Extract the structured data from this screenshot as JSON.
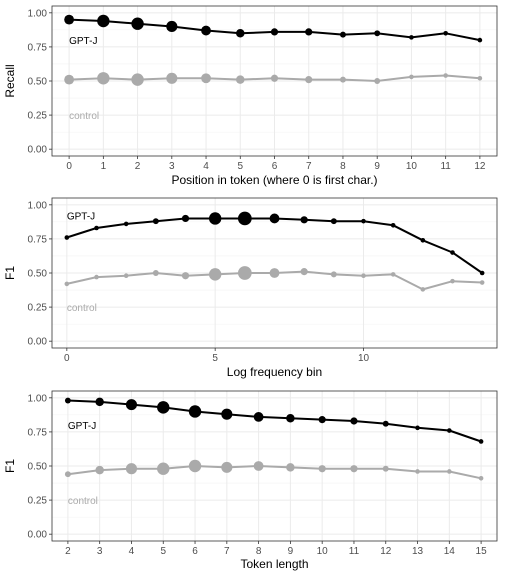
{
  "colors": {
    "gptj": "#000000",
    "control": "#aaaaaa",
    "panel_border": "#333333",
    "grid": "#ebebeb"
  },
  "chart_data": [
    {
      "type": "line",
      "xlabel": "Position in token (where 0 is first char.)",
      "ylabel": "Recall",
      "ylim": [
        0,
        1
      ],
      "xlim": [
        -0.5,
        12.5
      ],
      "x_ticks": [
        0,
        1,
        2,
        3,
        4,
        5,
        6,
        7,
        8,
        9,
        10,
        11,
        12
      ],
      "y_ticks": [
        0,
        0.25,
        0.5,
        0.75,
        1
      ],
      "y_tick_labels": [
        "0.00",
        "0.25",
        "0.50",
        "0.75",
        "1.00"
      ],
      "grid": true,
      "legend": "inline labels",
      "series": [
        {
          "name": "GPT-J",
          "color_key": "gptj",
          "x": [
            0,
            1,
            2,
            3,
            4,
            5,
            6,
            7,
            8,
            9,
            10,
            11,
            12
          ],
          "y": [
            0.95,
            0.94,
            0.92,
            0.9,
            0.87,
            0.85,
            0.86,
            0.86,
            0.84,
            0.85,
            0.82,
            0.85,
            0.8
          ],
          "size": [
            3,
            4,
            4,
            3.5,
            3,
            2.5,
            2,
            2,
            1.5,
            1.5,
            1,
            1,
            1
          ]
        },
        {
          "name": "control",
          "color_key": "control",
          "x": [
            0,
            1,
            2,
            3,
            4,
            5,
            6,
            7,
            8,
            9,
            10,
            11,
            12
          ],
          "y": [
            0.51,
            0.52,
            0.51,
            0.52,
            0.52,
            0.51,
            0.52,
            0.51,
            0.51,
            0.5,
            0.53,
            0.54,
            0.52
          ],
          "size": [
            3,
            4,
            4,
            3.5,
            3,
            2.5,
            2,
            2,
            1.5,
            1.5,
            1,
            1,
            1
          ]
        }
      ],
      "labels": [
        {
          "text": "GPT-J",
          "x": 0,
          "y": 0.8,
          "color_key": "gptj"
        },
        {
          "text": "control",
          "x": 0,
          "y": 0.25,
          "color_key": "control"
        }
      ]
    },
    {
      "type": "line",
      "xlabel": "Log frequency bin",
      "ylabel": "F1",
      "ylim": [
        0,
        1
      ],
      "xlim": [
        -0.5,
        14.5
      ],
      "x_ticks": [
        0,
        5,
        10
      ],
      "y_ticks": [
        0,
        0.25,
        0.5,
        0.75,
        1
      ],
      "y_tick_labels": [
        "0.00",
        "0.25",
        "0.50",
        "0.75",
        "1.00"
      ],
      "grid": true,
      "legend": "inline labels",
      "series": [
        {
          "name": "GPT-J",
          "color_key": "gptj",
          "x": [
            0,
            1,
            2,
            3,
            4,
            5,
            6,
            7,
            8,
            9,
            10,
            11,
            12,
            13,
            14
          ],
          "y": [
            0.76,
            0.83,
            0.86,
            0.88,
            0.9,
            0.9,
            0.9,
            0.9,
            0.89,
            0.88,
            0.88,
            0.85,
            0.74,
            0.65,
            0.5
          ],
          "size": [
            1,
            1,
            1,
            1.5,
            2,
            4,
            4.5,
            3,
            2,
            1.5,
            1,
            1,
            1,
            1,
            1
          ]
        },
        {
          "name": "control",
          "color_key": "control",
          "x": [
            0,
            1,
            2,
            3,
            4,
            5,
            6,
            7,
            8,
            9,
            10,
            11,
            12,
            13,
            14
          ],
          "y": [
            0.42,
            0.47,
            0.48,
            0.5,
            0.48,
            0.49,
            0.5,
            0.5,
            0.51,
            0.49,
            0.48,
            0.49,
            0.38,
            0.44,
            0.43
          ],
          "size": [
            1,
            1,
            1,
            1.5,
            2,
            4,
            4.5,
            3,
            2,
            1.5,
            1,
            1,
            1,
            1,
            1
          ]
        }
      ],
      "labels": [
        {
          "text": "GPT-J",
          "x": 0,
          "y": 0.92,
          "color_key": "gptj"
        },
        {
          "text": "control",
          "x": 0,
          "y": 0.25,
          "color_key": "control"
        }
      ]
    },
    {
      "type": "line",
      "xlabel": "Token length",
      "ylabel": "F1",
      "ylim": [
        0,
        1
      ],
      "xlim": [
        1.5,
        15.5
      ],
      "x_ticks": [
        2,
        3,
        4,
        5,
        6,
        7,
        8,
        9,
        10,
        11,
        12,
        13,
        14,
        15
      ],
      "y_ticks": [
        0,
        0.25,
        0.5,
        0.75,
        1
      ],
      "y_tick_labels": [
        "0.00",
        "0.25",
        "0.50",
        "0.75",
        "1.00"
      ],
      "grid": true,
      "legend": "inline labels",
      "series": [
        {
          "name": "GPT-J",
          "color_key": "gptj",
          "x": [
            2,
            3,
            4,
            5,
            6,
            7,
            8,
            9,
            10,
            11,
            12,
            13,
            14,
            15
          ],
          "y": [
            0.98,
            0.97,
            0.95,
            0.93,
            0.9,
            0.88,
            0.86,
            0.85,
            0.84,
            0.83,
            0.81,
            0.78,
            0.76,
            0.68
          ],
          "size": [
            1.5,
            2.5,
            3.5,
            4,
            4,
            3.5,
            3,
            2.5,
            2,
            2,
            1.5,
            1,
            1,
            1
          ]
        },
        {
          "name": "control",
          "color_key": "control",
          "x": [
            2,
            3,
            4,
            5,
            6,
            7,
            8,
            9,
            10,
            11,
            12,
            13,
            14,
            15
          ],
          "y": [
            0.44,
            0.47,
            0.48,
            0.48,
            0.5,
            0.49,
            0.5,
            0.49,
            0.48,
            0.48,
            0.48,
            0.46,
            0.46,
            0.41
          ],
          "size": [
            1.5,
            2.5,
            3.5,
            4,
            4,
            3.5,
            3,
            2.5,
            2,
            2,
            1.5,
            1,
            1,
            1
          ]
        }
      ],
      "labels": [
        {
          "text": "GPT-J",
          "x": 2,
          "y": 0.8,
          "color_key": "gptj"
        },
        {
          "text": "control",
          "x": 2,
          "y": 0.25,
          "color_key": "control"
        }
      ]
    }
  ]
}
